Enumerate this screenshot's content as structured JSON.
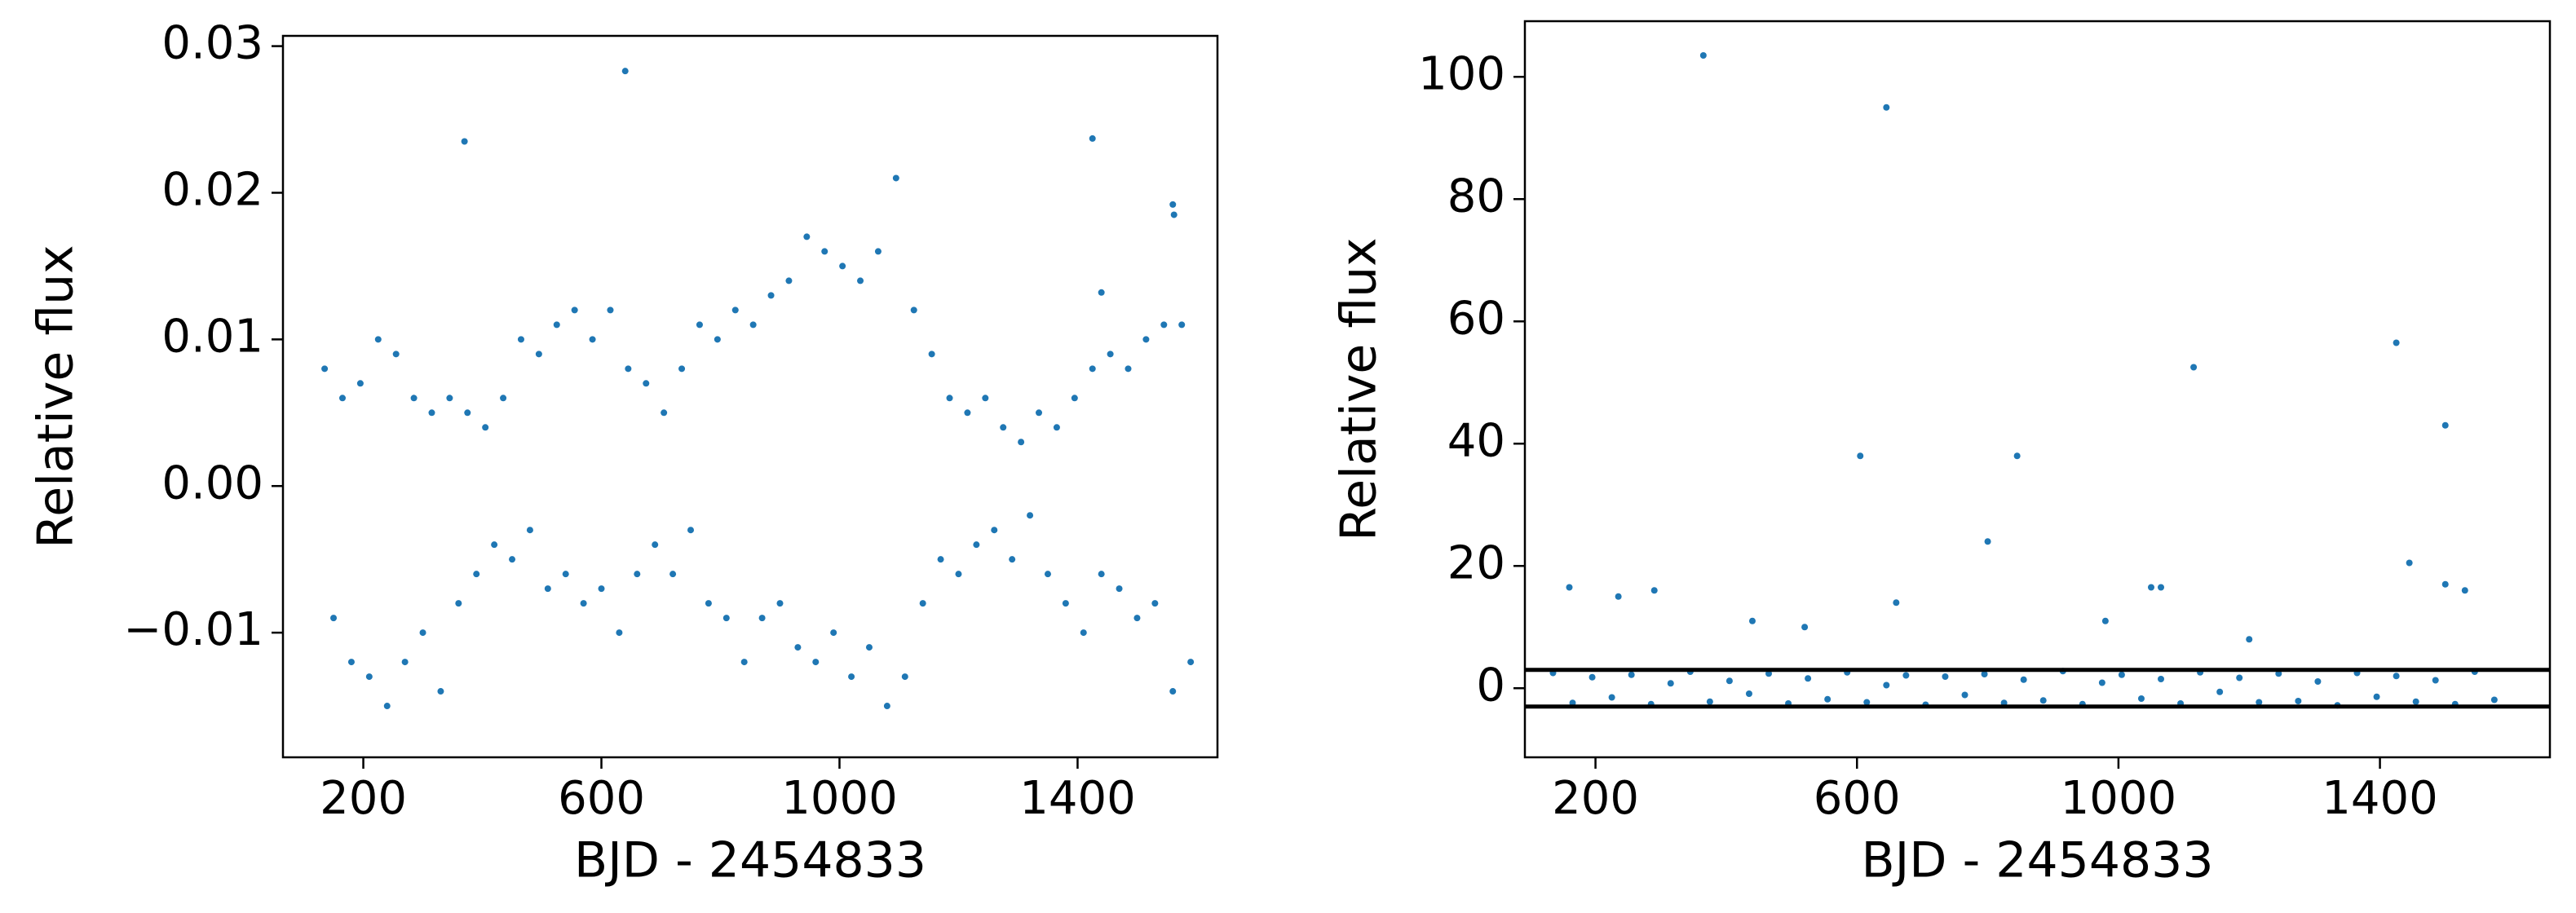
{
  "chart_data": [
    {
      "type": "scatter",
      "xlabel": "BJD - 2454833",
      "ylabel": "Relative flux",
      "xlim": [
        65,
        1635
      ],
      "ylim": [
        -0.0185,
        0.0307
      ],
      "xticks": [
        200,
        600,
        1000,
        1400
      ],
      "yticks": [
        {
          "value": -0.01,
          "label": "−0.01"
        },
        {
          "value": 0,
          "label": "0.00"
        },
        0.01,
        0.02,
        0.03
      ],
      "x": [
        135,
        150,
        165,
        180,
        195,
        210,
        225,
        240,
        255,
        270,
        285,
        300,
        315,
        330,
        345,
        360,
        375,
        390,
        405,
        420,
        435,
        450,
        465,
        480,
        495,
        510,
        525,
        540,
        555,
        570,
        585,
        600,
        615,
        630,
        645,
        660,
        675,
        690,
        705,
        720,
        735,
        750,
        765,
        780,
        795,
        810,
        825,
        840,
        855,
        870,
        885,
        900,
        915,
        930,
        945,
        960,
        975,
        990,
        1005,
        1020,
        1035,
        1050,
        1065,
        1080,
        1095,
        1110,
        1125,
        1140,
        1155,
        1170,
        1185,
        1200,
        1215,
        1230,
        1245,
        1260,
        1275,
        1290,
        1305,
        1320,
        1335,
        1350,
        1365,
        1380,
        1395,
        1410,
        1425,
        1440,
        1455,
        1470,
        1485,
        1500,
        1515,
        1530,
        1545,
        1560,
        1575,
        1590,
        370,
        640,
        1425,
        1560,
        1562,
        1440
      ],
      "series": [
        {
          "color": "#1f77b4",
          "values": [
            0.008,
            -0.009,
            0.006,
            -0.012,
            0.007,
            -0.013,
            0.01,
            -0.015,
            0.009,
            -0.012,
            0.006,
            -0.01,
            0.005,
            -0.014,
            0.006,
            -0.008,
            0.005,
            -0.006,
            0.004,
            -0.004,
            0.006,
            -0.005,
            0.01,
            -0.003,
            0.009,
            -0.007,
            0.011,
            -0.006,
            0.012,
            -0.008,
            0.01,
            -0.007,
            0.012,
            -0.01,
            0.008,
            -0.006,
            0.007,
            -0.004,
            0.005,
            -0.006,
            0.008,
            -0.003,
            0.011,
            -0.008,
            0.01,
            -0.009,
            0.012,
            -0.012,
            0.011,
            -0.009,
            0.013,
            -0.008,
            0.014,
            -0.011,
            0.017,
            -0.012,
            0.016,
            -0.01,
            0.015,
            -0.013,
            0.014,
            -0.011,
            0.016,
            -0.015,
            0.021,
            -0.013,
            0.012,
            -0.008,
            0.009,
            -0.005,
            0.006,
            -0.006,
            0.005,
            -0.004,
            0.006,
            -0.003,
            0.004,
            -0.005,
            0.003,
            -0.002,
            0.005,
            -0.006,
            0.004,
            -0.008,
            0.006,
            -0.01,
            0.008,
            -0.006,
            0.009,
            -0.007,
            0.008,
            -0.009,
            0.01,
            -0.008,
            0.011,
            -0.014,
            0.011,
            -0.012,
            0.0235,
            0.0283,
            0.0237,
            0.0192,
            0.0185,
            0.0132
          ]
        }
      ]
    },
    {
      "type": "scatter",
      "xlabel": "BJD - 2454833",
      "ylabel": "Relative flux",
      "xlim": [
        92,
        1660
      ],
      "ylim": [
        -11.3,
        109.1
      ],
      "xticks": [
        200,
        600,
        1000,
        1400
      ],
      "yticks": [
        0,
        20,
        40,
        60,
        80,
        100
      ],
      "hlines": [
        3,
        -3
      ],
      "hline_color": "#000000",
      "x": [
        135,
        165,
        195,
        225,
        255,
        285,
        315,
        345,
        375,
        405,
        435,
        465,
        495,
        525,
        555,
        585,
        615,
        645,
        675,
        705,
        735,
        765,
        795,
        825,
        855,
        885,
        915,
        945,
        975,
        1005,
        1035,
        1065,
        1095,
        1125,
        1155,
        1185,
        1215,
        1245,
        1275,
        1305,
        1335,
        1365,
        1395,
        1425,
        1455,
        1485,
        1515,
        1545,
        1575,
        365,
        645,
        1115,
        1425,
        1500,
        605,
        845,
        800,
        1445,
        160,
        235,
        290,
        1050,
        1065,
        1500,
        1530,
        660,
        1200,
        440,
        980,
        520
      ],
      "series": [
        {
          "color": "#1f77b4",
          "values": [
            2.5,
            -2.4,
            1.8,
            -1.5,
            2.2,
            -2.6,
            0.8,
            2.7,
            -2.2,
            1.2,
            -0.9,
            2.4,
            -2.5,
            1.6,
            -1.8,
            2.6,
            -2.3,
            0.5,
            2.1,
            -2.7,
            1.9,
            -1.1,
            2.3,
            -2.4,
            1.4,
            -2.0,
            2.8,
            -2.6,
            0.9,
            2.2,
            -1.7,
            1.5,
            -2.5,
            2.6,
            -0.6,
            1.7,
            -2.3,
            2.4,
            -2.1,
            1.1,
            -2.8,
            2.5,
            -1.4,
            2.0,
            -2.2,
            1.3,
            -2.6,
            2.7,
            -1.9,
            103.5,
            95,
            52.5,
            56.5,
            43,
            38,
            38,
            24,
            20.5,
            16.5,
            15,
            16,
            16.5,
            16.5,
            17,
            16,
            14,
            8,
            11,
            11,
            10
          ]
        }
      ]
    }
  ]
}
